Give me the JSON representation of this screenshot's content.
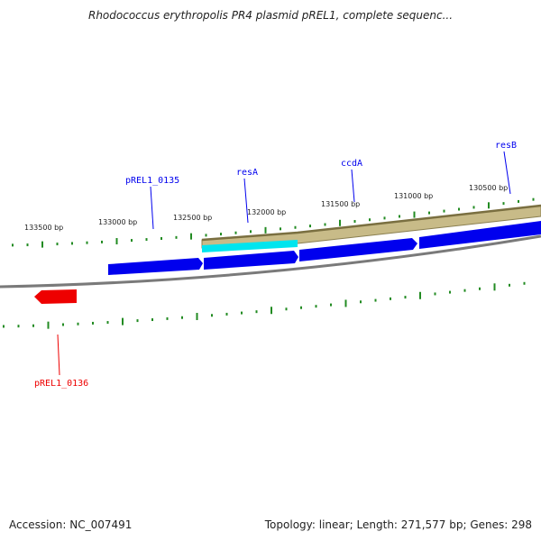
{
  "title": "Rhodococcus erythropolis PR4 plasmid pREL1, complete sequenc...",
  "footer": {
    "accession": "Accession: NC_007491",
    "summary": "Topology: linear; Length: 271,577 bp; Genes: 298"
  },
  "colors": {
    "forward_gene": "#0000ee",
    "reverse_gene": "#ee0000",
    "backbone": "#808080",
    "tick": "#228b22",
    "tan_feature": "#c8bb88",
    "cyan_feature": "#00eeee"
  },
  "ticks": [
    {
      "label": "133500 bp"
    },
    {
      "label": "133000 bp"
    },
    {
      "label": "132500 bp"
    },
    {
      "label": "132000 bp"
    },
    {
      "label": "131500 bp"
    },
    {
      "label": "131000 bp"
    },
    {
      "label": "130500 bp"
    }
  ],
  "genes": [
    {
      "name": "pREL1_0135",
      "strand": "+"
    },
    {
      "name": "resA",
      "strand": "+"
    },
    {
      "name": "ccdA",
      "strand": "+"
    },
    {
      "name": "resB",
      "strand": "+"
    },
    {
      "name": "pREL1_0136",
      "strand": "-"
    }
  ]
}
